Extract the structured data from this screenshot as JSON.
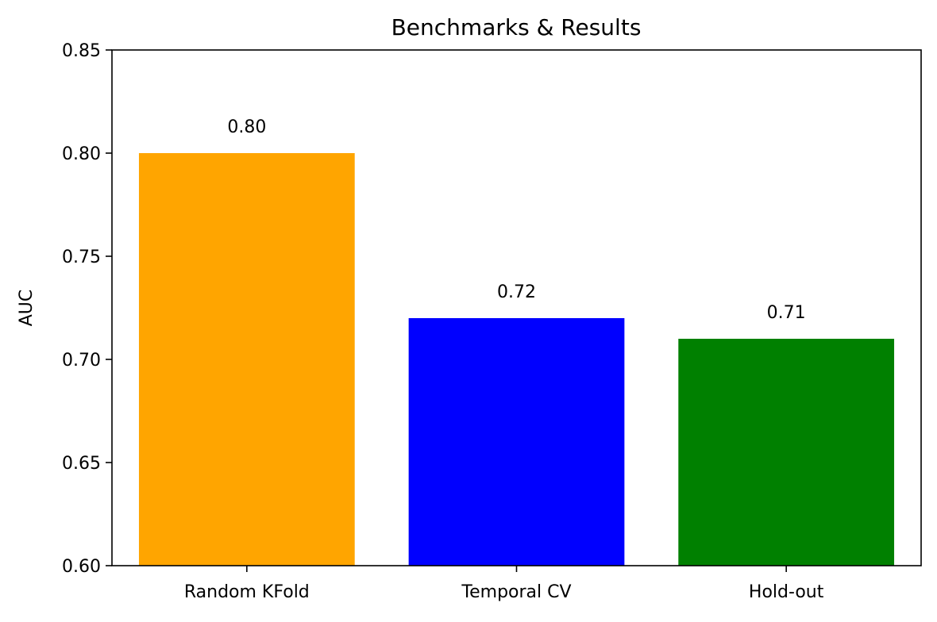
{
  "chart_data": {
    "type": "bar",
    "title": "Benchmarks & Results",
    "xlabel": "",
    "ylabel": "AUC",
    "categories": [
      "Random KFold",
      "Temporal CV",
      "Hold-out"
    ],
    "values": [
      0.8,
      0.72,
      0.71
    ],
    "value_labels": [
      "0.80",
      "0.72",
      "0.71"
    ],
    "colors": [
      "#ffa500",
      "#0000ff",
      "#008000"
    ],
    "ylim": [
      0.6,
      0.85
    ],
    "yticks": [
      0.6,
      0.65,
      0.7,
      0.75,
      0.8,
      0.85
    ],
    "ytick_labels": [
      "0.60",
      "0.65",
      "0.70",
      "0.75",
      "0.80",
      "0.85"
    ],
    "grid": false,
    "legend": "none"
  }
}
